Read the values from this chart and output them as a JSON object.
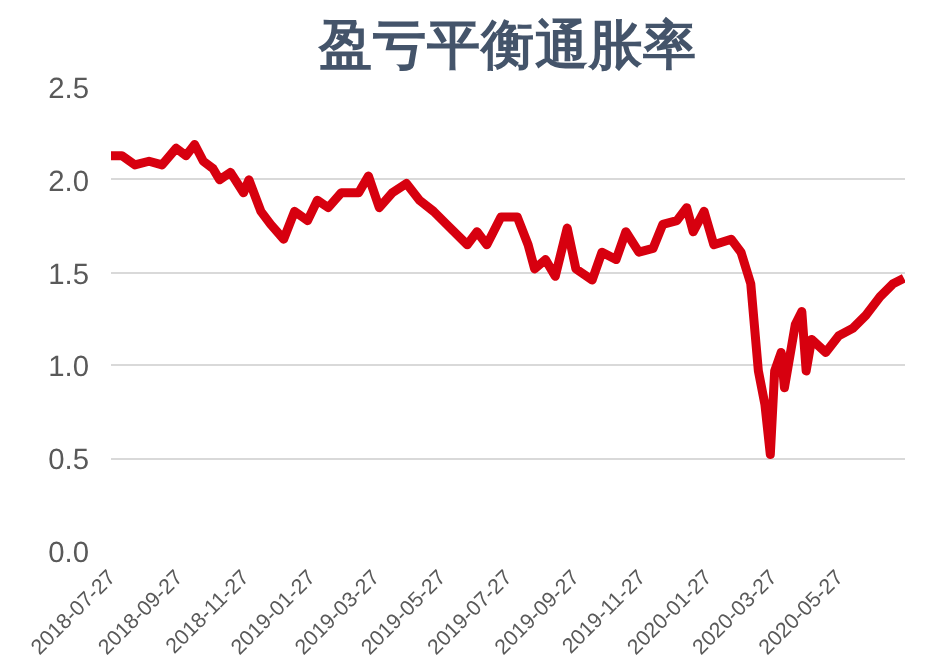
{
  "chart_data": {
    "type": "line",
    "title": "盈亏平衡通胀率",
    "xlim": [
      "2018-07-27",
      "2020-07-27"
    ],
    "xticks": [
      "2018-07-27",
      "2018-09-27",
      "2018-11-27",
      "2019-01-27",
      "2019-03-27",
      "2019-05-27",
      "2019-07-27",
      "2019-09-27",
      "2019-11-27",
      "2020-01-27",
      "2020-03-27",
      "2020-05-27"
    ],
    "ylim": [
      0,
      2.5
    ],
    "yticks": [
      {
        "value": 0,
        "label": "0.0"
      },
      0.5,
      {
        "value": 1,
        "label": "1.0"
      },
      1.5,
      {
        "value": 2,
        "label": "2.0"
      },
      2.5
    ],
    "grid": "y",
    "series": [
      {
        "color": "#d7000f",
        "x": [
          "2018-07-27",
          "2018-08-06",
          "2018-08-18",
          "2018-08-31",
          "2018-09-12",
          "2018-09-25",
          "2018-10-04",
          "2018-10-12",
          "2018-10-20",
          "2018-10-29",
          "2018-11-04",
          "2018-11-14",
          "2018-11-26",
          "2018-12-01",
          "2018-12-12",
          "2018-12-21",
          "2019-01-02",
          "2019-01-12",
          "2019-01-24",
          "2019-02-02",
          "2019-02-12",
          "2019-02-24",
          "2019-03-12",
          "2019-03-21",
          "2019-03-31",
          "2019-04-12",
          "2019-04-25",
          "2019-05-07",
          "2019-05-20",
          "2019-06-01",
          "2019-06-20",
          "2019-06-29",
          "2019-07-08",
          "2019-07-21",
          "2019-08-05",
          "2019-08-15",
          "2019-08-21",
          "2019-08-31",
          "2019-09-09",
          "2019-09-20",
          "2019-09-28",
          "2019-10-13",
          "2019-10-22",
          "2019-11-04",
          "2019-11-13",
          "2019-11-25",
          "2019-12-08",
          "2019-12-17",
          "2019-12-30",
          "2020-01-08",
          "2020-01-14",
          "2020-01-24",
          "2020-02-02",
          "2020-02-18",
          "2020-02-27",
          "2020-03-07",
          "2020-03-14",
          "2020-03-20",
          "2020-03-25",
          "2020-03-29",
          "2020-04-04",
          "2020-04-07",
          "2020-04-17",
          "2020-04-23",
          "2020-04-27",
          "2020-05-02",
          "2020-05-15",
          "2020-05-27",
          "2020-06-09",
          "2020-06-21",
          "2020-07-04",
          "2020-07-16",
          "2020-07-26"
        ],
        "values": [
          2.13,
          2.13,
          2.08,
          2.1,
          2.08,
          2.17,
          2.13,
          2.19,
          2.1,
          2.06,
          2.0,
          2.04,
          1.93,
          2.0,
          1.83,
          1.76,
          1.68,
          1.83,
          1.78,
          1.89,
          1.85,
          1.93,
          1.93,
          2.02,
          1.85,
          1.93,
          1.98,
          1.89,
          1.83,
          1.76,
          1.65,
          1.72,
          1.65,
          1.8,
          1.8,
          1.65,
          1.52,
          1.57,
          1.48,
          1.74,
          1.52,
          1.46,
          1.61,
          1.57,
          1.72,
          1.61,
          1.63,
          1.76,
          1.78,
          1.85,
          1.72,
          1.83,
          1.65,
          1.68,
          1.61,
          1.44,
          0.97,
          0.79,
          0.52,
          0.97,
          1.07,
          0.88,
          1.22,
          1.29,
          0.97,
          1.14,
          1.07,
          1.16,
          1.2,
          1.27,
          1.37,
          1.44,
          1.47
        ]
      }
    ]
  }
}
